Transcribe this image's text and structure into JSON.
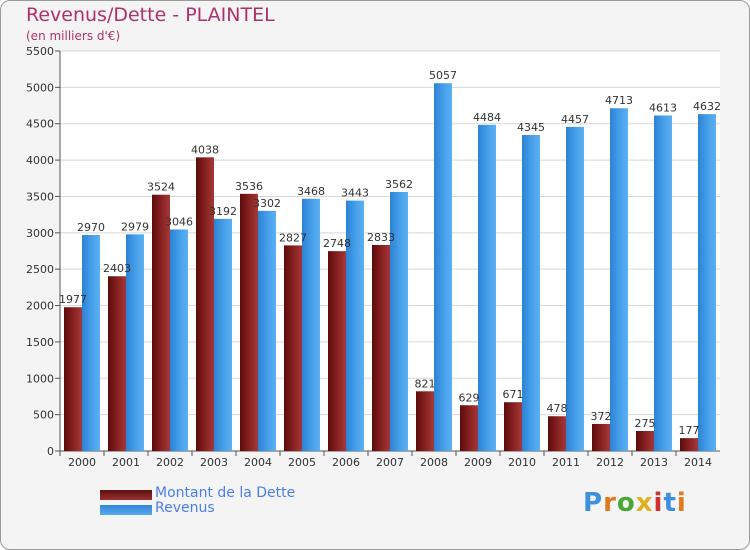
{
  "header": {
    "title": "Revenus/Dette - PLAINTEL",
    "subtitle": "(en milliers d'€)"
  },
  "logo": {
    "text": "Proxiti"
  },
  "chart_data": {
    "type": "bar",
    "title": "Revenus/Dette - PLAINTEL",
    "ylabel": "(en milliers d'€)",
    "categories": [
      "2000",
      "2001",
      "2002",
      "2003",
      "2004",
      "2005",
      "2006",
      "2007",
      "2008",
      "2009",
      "2010",
      "2011",
      "2012",
      "2013",
      "2014"
    ],
    "series": [
      {
        "name": "Montant de la Dette",
        "color": "#8a1f1f",
        "values": [
          1977,
          2403,
          3524,
          4038,
          3536,
          2827,
          2748,
          2833,
          821,
          629,
          671,
          478,
          372,
          275,
          177
        ],
        "labels": [
          "1977",
          "2403",
          "3524",
          "4038",
          "3536",
          "2827",
          "2748",
          "2833",
          "821",
          "629",
          "671",
          "478",
          "372",
          "275",
          "177"
        ]
      },
      {
        "name": "Revenus",
        "color": "#3d97e0",
        "values": [
          2970,
          2979,
          3046,
          3192,
          3302,
          3468,
          3443,
          3562,
          5057,
          4484,
          4345,
          4457,
          4713,
          4613,
          4632
        ],
        "labels": [
          "2970",
          "2979",
          "3046",
          "3192",
          "3302",
          "3468",
          "3443",
          "3562",
          "5057",
          "4484",
          "4345",
          "4457",
          "4713",
          "4613",
          "4632"
        ]
      }
    ],
    "ylim": [
      0,
      5500
    ],
    "yticks": [
      "0",
      "500",
      "1000",
      "1500",
      "2000",
      "2500",
      "3000",
      "3500",
      "4000",
      "4500",
      "5000",
      "5500"
    ],
    "grid": true,
    "legend_position": "bottom-left"
  }
}
